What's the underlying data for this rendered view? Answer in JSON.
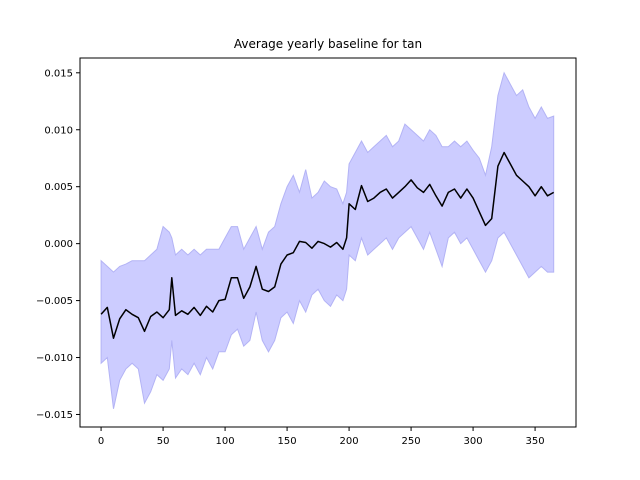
{
  "chart_data": {
    "type": "line",
    "title": "Average yearly baseline for tan",
    "xlabel": "",
    "ylabel": "",
    "xlim": [
      -17,
      383
    ],
    "ylim": [
      -0.0161,
      0.0163
    ],
    "xticks": [
      0,
      50,
      100,
      150,
      200,
      250,
      300,
      350
    ],
    "xtick_labels": [
      "0",
      "50",
      "100",
      "150",
      "200",
      "250",
      "300",
      "350"
    ],
    "yticks": [
      -0.015,
      -0.01,
      -0.005,
      0.0,
      0.005,
      0.01,
      0.015
    ],
    "ytick_labels": [
      "−0.015",
      "−0.010",
      "−0.005",
      "0.000",
      "0.005",
      "0.010",
      "0.015"
    ],
    "grid": false,
    "colors": {
      "line": "#000000",
      "band_fill": "#ccccff",
      "band_edge": "#b3b3f5"
    },
    "series": [
      {
        "x": [
          0,
          5,
          10,
          15,
          20,
          25,
          30,
          35,
          40,
          45,
          50,
          55,
          57,
          60,
          65,
          70,
          75,
          80,
          85,
          90,
          95,
          100,
          105,
          110,
          115,
          120,
          125,
          130,
          135,
          140,
          145,
          150,
          155,
          160,
          165,
          170,
          175,
          180,
          185,
          190,
          195,
          198,
          200,
          205,
          210,
          215,
          220,
          225,
          230,
          235,
          240,
          245,
          250,
          255,
          260,
          265,
          270,
          275,
          280,
          285,
          290,
          295,
          300,
          305,
          310,
          315,
          320,
          325,
          330,
          335,
          340,
          345,
          350,
          355,
          360,
          365
        ],
        "y": [
          -0.0062,
          -0.0056,
          -0.0083,
          -0.0066,
          -0.0058,
          -0.0062,
          -0.0065,
          -0.0077,
          -0.0064,
          -0.006,
          -0.0065,
          -0.0058,
          -0.003,
          -0.0063,
          -0.0059,
          -0.0062,
          -0.0056,
          -0.0063,
          -0.0055,
          -0.006,
          -0.005,
          -0.0049,
          -0.003,
          -0.003,
          -0.0048,
          -0.0038,
          -0.002,
          -0.004,
          -0.0042,
          -0.0038,
          -0.0018,
          -0.001,
          -0.0008,
          0.0002,
          0.0001,
          -0.0004,
          0.0002,
          0.0,
          -0.0003,
          0.0001,
          -0.0005,
          0.0005,
          0.0035,
          0.003,
          0.0051,
          0.0037,
          0.004,
          0.0045,
          0.0048,
          0.004,
          0.0045,
          0.005,
          0.0056,
          0.0049,
          0.0045,
          0.0052,
          0.0042,
          0.0033,
          0.0045,
          0.0048,
          0.004,
          0.0048,
          0.004,
          0.0028,
          0.0016,
          0.0022,
          0.0068,
          0.008,
          0.007,
          0.006,
          0.0055,
          0.005,
          0.0042,
          0.005,
          0.0042,
          0.0045
        ]
      }
    ],
    "band": {
      "x": [
        0,
        5,
        10,
        15,
        20,
        25,
        30,
        35,
        40,
        45,
        50,
        55,
        57,
        60,
        65,
        70,
        75,
        80,
        85,
        90,
        95,
        100,
        105,
        110,
        115,
        120,
        125,
        130,
        135,
        140,
        145,
        150,
        155,
        160,
        165,
        170,
        175,
        180,
        185,
        190,
        195,
        198,
        200,
        205,
        210,
        215,
        220,
        225,
        230,
        235,
        240,
        245,
        250,
        255,
        260,
        265,
        270,
        275,
        280,
        285,
        290,
        295,
        300,
        305,
        310,
        315,
        320,
        325,
        330,
        335,
        340,
        345,
        350,
        355,
        360,
        365
      ],
      "upper": [
        -0.0015,
        -0.002,
        -0.0025,
        -0.002,
        -0.0018,
        -0.0015,
        -0.0015,
        -0.0015,
        -0.001,
        -0.0005,
        0.0015,
        0.001,
        0.0005,
        -0.001,
        -0.0005,
        -0.001,
        -0.0005,
        -0.001,
        -0.0005,
        -0.0005,
        -0.0005,
        0.0005,
        0.0015,
        0.0015,
        -0.0005,
        0.0005,
        0.0015,
        -0.0005,
        0.001,
        0.0015,
        0.0035,
        0.005,
        0.006,
        0.0045,
        0.0065,
        0.004,
        0.0045,
        0.0055,
        0.005,
        0.0048,
        0.0035,
        0.0045,
        0.007,
        0.008,
        0.009,
        0.008,
        0.0085,
        0.009,
        0.0095,
        0.0085,
        0.009,
        0.0105,
        0.01,
        0.0095,
        0.009,
        0.01,
        0.0095,
        0.0085,
        0.0085,
        0.009,
        0.0085,
        0.009,
        0.0082,
        0.0075,
        0.006,
        0.0085,
        0.013,
        0.015,
        0.014,
        0.013,
        0.0135,
        0.012,
        0.011,
        0.012,
        0.011,
        0.0112
      ],
      "lower": [
        -0.0105,
        -0.01,
        -0.0145,
        -0.012,
        -0.011,
        -0.0105,
        -0.011,
        -0.014,
        -0.013,
        -0.0115,
        -0.012,
        -0.011,
        -0.0085,
        -0.0118,
        -0.011,
        -0.0115,
        -0.0105,
        -0.0115,
        -0.01,
        -0.011,
        -0.0095,
        -0.0095,
        -0.008,
        -0.0075,
        -0.009,
        -0.0085,
        -0.006,
        -0.0085,
        -0.0095,
        -0.0085,
        -0.0065,
        -0.006,
        -0.007,
        -0.005,
        -0.006,
        -0.0045,
        -0.004,
        -0.005,
        -0.0055,
        -0.0045,
        -0.005,
        -0.004,
        -0.001,
        -0.0015,
        0.0005,
        -0.001,
        -0.0005,
        0.0,
        0.0005,
        -0.0005,
        0.0005,
        0.001,
        0.0015,
        0.0005,
        -0.0005,
        0.001,
        -0.0005,
        -0.002,
        0.0005,
        0.001,
        0.0,
        0.0005,
        -0.0005,
        -0.0015,
        -0.0025,
        -0.0015,
        0.0005,
        0.001,
        0.0,
        -0.001,
        -0.002,
        -0.003,
        -0.0025,
        -0.002,
        -0.0025,
        -0.0025
      ]
    }
  }
}
